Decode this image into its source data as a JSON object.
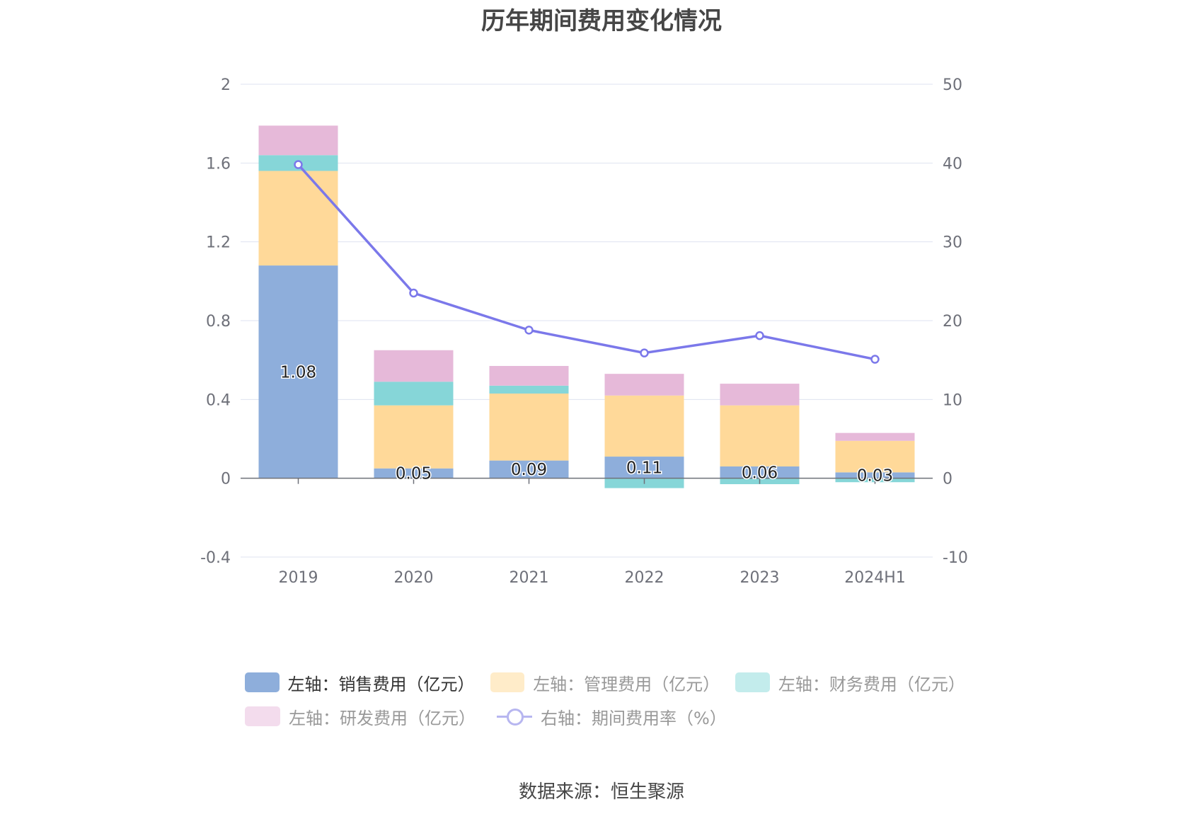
{
  "title": "历年期间费用变化情况",
  "source": "数据来源：恒生聚源",
  "colors": {
    "sales": "#8eaedb",
    "admin": "#ffd999",
    "finance": "#86d6d8",
    "rd": "#e6b9d9",
    "rate": "#7b78ea",
    "grid": "#dfe3f0",
    "axis": "#6e7079"
  },
  "legend": {
    "sales": "左轴：销售费用（亿元）",
    "admin": "左轴：管理费用（亿元）",
    "finance": "左轴：财务费用（亿元）",
    "rd": "左轴：研发费用（亿元）",
    "rate": "右轴：期间费用率（%）"
  },
  "chart_data": {
    "type": "bar",
    "title": "历年期间费用变化情况",
    "categories": [
      "2019",
      "2020",
      "2021",
      "2022",
      "2023",
      "2024H1"
    ],
    "left_axis": {
      "ylim": [
        -0.4,
        2
      ],
      "ticks": [
        "2",
        "1.6",
        "1.2",
        "0.8",
        "0.4",
        "0",
        "-0.4"
      ],
      "tick_values": [
        2,
        1.6,
        1.2,
        0.8,
        0.4,
        0,
        -0.4
      ]
    },
    "right_axis": {
      "ylim": [
        -10,
        50
      ],
      "ticks": [
        "50",
        "40",
        "30",
        "20",
        "10",
        "0",
        "-10"
      ],
      "tick_values": [
        50,
        40,
        30,
        20,
        10,
        0,
        -10
      ]
    },
    "series": [
      {
        "name": "左轴：销售费用（亿元）",
        "key": "sales",
        "type": "bar",
        "stack": true,
        "axis": "left",
        "values": [
          1.08,
          0.05,
          0.09,
          0.11,
          0.06,
          0.03
        ],
        "labels": [
          "1.08",
          "0.05",
          "0.09",
          "0.11",
          "0.06",
          "0.03"
        ]
      },
      {
        "name": "左轴：管理费用（亿元）",
        "key": "admin",
        "type": "bar",
        "stack": true,
        "axis": "left",
        "values": [
          0.48,
          0.32,
          0.34,
          0.31,
          0.31,
          0.16
        ]
      },
      {
        "name": "左轴：财务费用（亿元）",
        "key": "finance",
        "type": "bar",
        "stack": true,
        "axis": "left",
        "values": [
          0.08,
          0.12,
          0.04,
          -0.05,
          -0.03,
          -0.02
        ]
      },
      {
        "name": "左轴：研发费用（亿元）",
        "key": "rd",
        "type": "bar",
        "stack": true,
        "axis": "left",
        "values": [
          0.15,
          0.16,
          0.1,
          0.11,
          0.11,
          0.04
        ]
      },
      {
        "name": "右轴：期间费用率（%）",
        "key": "rate",
        "type": "line",
        "axis": "right",
        "values": [
          39.8,
          23.5,
          18.8,
          15.9,
          18.1,
          15.1
        ]
      }
    ],
    "grid": true,
    "legend_position": "bottom"
  }
}
